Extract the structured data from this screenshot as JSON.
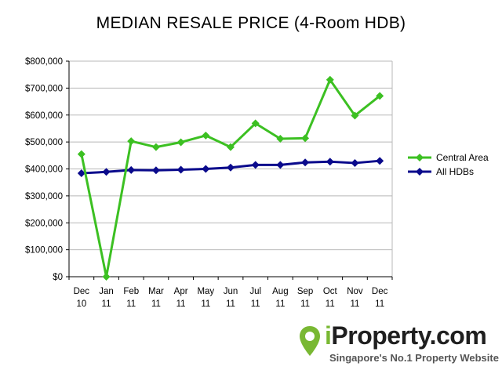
{
  "chart_data": {
    "type": "line",
    "title": "MEDIAN RESALE PRICE (4-Room HDB)",
    "xlabel": "",
    "ylabel": "",
    "categories": [
      [
        "Dec",
        "10"
      ],
      [
        "Jan",
        "11"
      ],
      [
        "Feb",
        "11"
      ],
      [
        "Mar",
        "11"
      ],
      [
        "Apr",
        "11"
      ],
      [
        "May",
        "11"
      ],
      [
        "Jun",
        "11"
      ],
      [
        "Jul",
        "11"
      ],
      [
        "Aug",
        "11"
      ],
      [
        "Sep",
        "11"
      ],
      [
        "Oct",
        "11"
      ],
      [
        "Nov",
        "11"
      ],
      [
        "Dec",
        "11"
      ]
    ],
    "ylim": [
      0,
      800000
    ],
    "yticks": [
      0,
      100000,
      200000,
      300000,
      400000,
      500000,
      600000,
      700000,
      800000
    ],
    "ytick_labels": [
      "$0",
      "$100,000",
      "$200,000",
      "$300,000",
      "$400,000",
      "$500,000",
      "$600,000",
      "$700,000",
      "$800,000"
    ],
    "grid": true,
    "legend_position": "right",
    "series": [
      {
        "name": "Central Area",
        "color": "#3cc022",
        "values": [
          455000,
          0,
          503000,
          481000,
          499000,
          524000,
          481000,
          569000,
          512000,
          514000,
          731000,
          598000,
          671000
        ]
      },
      {
        "name": "All HDBs",
        "color": "#0a0a8c",
        "values": [
          384000,
          389000,
          396000,
          395000,
          397000,
          400000,
          405000,
          415000,
          415000,
          424000,
          427000,
          422000,
          430000
        ]
      }
    ]
  },
  "brand": {
    "name_prefix": "i",
    "name_rest": "Property.com",
    "tagline": "Singapore's No.1 Property Website",
    "pin_color": "#79b833"
  }
}
